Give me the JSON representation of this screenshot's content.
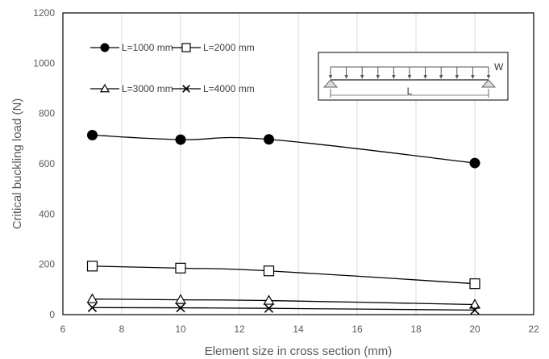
{
  "chart_data": {
    "type": "line",
    "title": "",
    "xlabel": "Element size in cross section (mm)",
    "ylabel": "Critical buckling load (N)",
    "xlim": [
      6,
      22
    ],
    "ylim": [
      0,
      1200
    ],
    "xticks": [
      6,
      8,
      10,
      12,
      14,
      16,
      18,
      20,
      22
    ],
    "yticks": [
      0,
      200,
      400,
      600,
      800,
      1000,
      1200
    ],
    "grid": "vertical",
    "legend": "top-left",
    "smooth": true,
    "series": [
      {
        "name": "L=1000 mm",
        "marker": "filled-circle",
        "x": [
          7,
          10,
          13,
          20
        ],
        "y": [
          714,
          696,
          697,
          603
        ]
      },
      {
        "name": "L=2000 mm",
        "marker": "open-square",
        "x": [
          7,
          10,
          13,
          20
        ],
        "y": [
          193,
          185,
          174,
          123
        ]
      },
      {
        "name": "L=3000 mm",
        "marker": "open-triangle",
        "x": [
          7,
          10,
          13,
          20
        ],
        "y": [
          62,
          59,
          56,
          40
        ]
      },
      {
        "name": "L=4000 mm",
        "marker": "cross",
        "x": [
          7,
          10,
          13,
          20
        ],
        "y": [
          28,
          27,
          25,
          18
        ]
      }
    ],
    "inset": {
      "load_label": "W",
      "span_label": "L"
    }
  }
}
